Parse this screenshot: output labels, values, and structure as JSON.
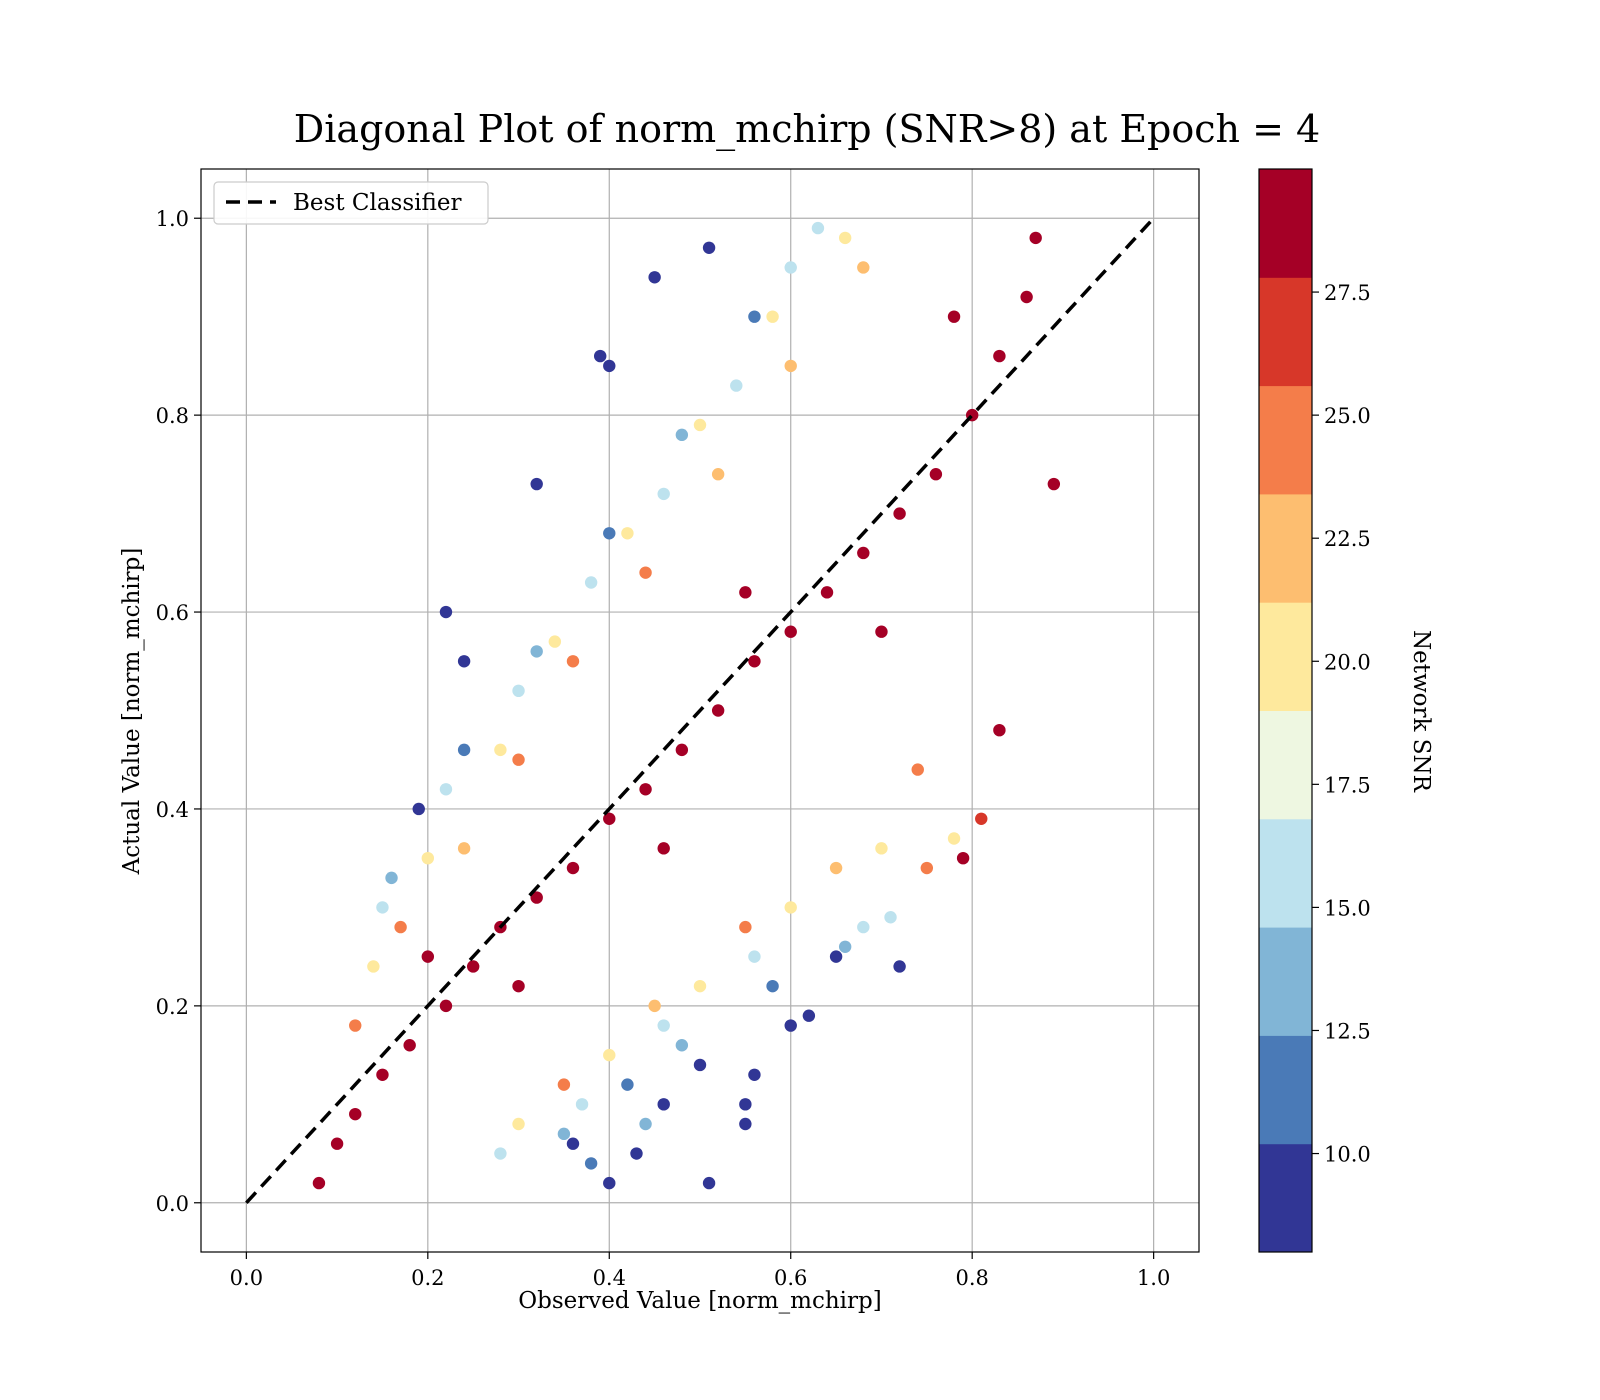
{
  "chart_data": {
    "type": "scatter",
    "title": "Diagonal Plot of norm_mchirp (SNR>8) at Epoch = 4",
    "xlabel": "Observed Value [norm_mchirp]",
    "ylabel": "Actual Value [norm_mchirp]",
    "xlim": [
      -0.05,
      1.05
    ],
    "ylim": [
      -0.05,
      1.05
    ],
    "xticks": [
      "0.0",
      "0.2",
      "0.4",
      "0.6",
      "0.8",
      "1.0"
    ],
    "yticks": [
      "0.0",
      "0.2",
      "0.4",
      "0.6",
      "0.8",
      "1.0"
    ],
    "grid": true,
    "legend": {
      "placement": "upper-left",
      "entries": [
        {
          "label": "Best Classifier",
          "style": "dashed",
          "color": "#000000"
        }
      ]
    },
    "reference_line": {
      "name": "Best Classifier",
      "x": [
        0.0,
        1.0
      ],
      "y": [
        0.0,
        1.0
      ]
    },
    "colorbar": {
      "label": "Network SNR",
      "range": [
        8,
        30
      ],
      "ticks": [
        "10.0",
        "12.5",
        "15.0",
        "17.5",
        "20.0",
        "22.5",
        "25.0",
        "27.5"
      ],
      "tick_values": [
        10.0,
        12.5,
        15.0,
        17.5,
        20.0,
        22.5,
        25.0,
        27.5
      ],
      "levels": [
        {
          "from": 8.0,
          "to": 10.2,
          "color": "#313695"
        },
        {
          "from": 10.2,
          "to": 12.4,
          "color": "#4a7ab7"
        },
        {
          "from": 12.4,
          "to": 14.6,
          "color": "#81b5d6"
        },
        {
          "from": 14.6,
          "to": 16.8,
          "color": "#bde2ee"
        },
        {
          "from": 16.8,
          "to": 19.0,
          "color": "#eef7e1"
        },
        {
          "from": 19.0,
          "to": 21.2,
          "color": "#fee99d"
        },
        {
          "from": 21.2,
          "to": 23.4,
          "color": "#fdbe70"
        },
        {
          "from": 23.4,
          "to": 25.6,
          "color": "#f47d4a"
        },
        {
          "from": 25.6,
          "to": 27.8,
          "color": "#d73729"
        },
        {
          "from": 27.8,
          "to": 30.0,
          "color": "#a50026"
        }
      ]
    },
    "points": [
      {
        "x": 0.08,
        "y": 0.02,
        "snr": 29
      },
      {
        "x": 0.1,
        "y": 0.06,
        "snr": 29
      },
      {
        "x": 0.12,
        "y": 0.09,
        "snr": 29
      },
      {
        "x": 0.15,
        "y": 0.13,
        "snr": 29
      },
      {
        "x": 0.18,
        "y": 0.16,
        "snr": 29
      },
      {
        "x": 0.22,
        "y": 0.2,
        "snr": 29
      },
      {
        "x": 0.25,
        "y": 0.24,
        "snr": 29
      },
      {
        "x": 0.28,
        "y": 0.28,
        "snr": 29
      },
      {
        "x": 0.32,
        "y": 0.31,
        "snr": 29
      },
      {
        "x": 0.36,
        "y": 0.34,
        "snr": 29
      },
      {
        "x": 0.4,
        "y": 0.39,
        "snr": 29
      },
      {
        "x": 0.44,
        "y": 0.42,
        "snr": 29
      },
      {
        "x": 0.48,
        "y": 0.46,
        "snr": 29
      },
      {
        "x": 0.52,
        "y": 0.5,
        "snr": 29
      },
      {
        "x": 0.56,
        "y": 0.55,
        "snr": 29
      },
      {
        "x": 0.6,
        "y": 0.58,
        "snr": 29
      },
      {
        "x": 0.64,
        "y": 0.62,
        "snr": 29
      },
      {
        "x": 0.68,
        "y": 0.66,
        "snr": 29
      },
      {
        "x": 0.72,
        "y": 0.7,
        "snr": 29
      },
      {
        "x": 0.76,
        "y": 0.74,
        "snr": 29
      },
      {
        "x": 0.8,
        "y": 0.8,
        "snr": 29
      },
      {
        "x": 0.83,
        "y": 0.86,
        "snr": 29
      },
      {
        "x": 0.86,
        "y": 0.92,
        "snr": 29
      },
      {
        "x": 0.87,
        "y": 0.98,
        "snr": 29
      },
      {
        "x": 0.2,
        "y": 0.25,
        "snr": 28
      },
      {
        "x": 0.3,
        "y": 0.22,
        "snr": 28
      },
      {
        "x": 0.46,
        "y": 0.36,
        "snr": 28
      },
      {
        "x": 0.55,
        "y": 0.62,
        "snr": 28
      },
      {
        "x": 0.7,
        "y": 0.58,
        "snr": 28
      },
      {
        "x": 0.78,
        "y": 0.9,
        "snr": 28
      },
      {
        "x": 0.89,
        "y": 0.73,
        "snr": 29
      },
      {
        "x": 0.83,
        "y": 0.48,
        "snr": 29
      },
      {
        "x": 0.81,
        "y": 0.39,
        "snr": 26
      },
      {
        "x": 0.79,
        "y": 0.35,
        "snr": 29
      },
      {
        "x": 0.75,
        "y": 0.34,
        "snr": 25
      },
      {
        "x": 0.12,
        "y": 0.18,
        "snr": 25
      },
      {
        "x": 0.17,
        "y": 0.28,
        "snr": 24
      },
      {
        "x": 0.24,
        "y": 0.36,
        "snr": 23
      },
      {
        "x": 0.3,
        "y": 0.45,
        "snr": 24
      },
      {
        "x": 0.36,
        "y": 0.55,
        "snr": 25
      },
      {
        "x": 0.44,
        "y": 0.64,
        "snr": 24
      },
      {
        "x": 0.52,
        "y": 0.74,
        "snr": 23
      },
      {
        "x": 0.6,
        "y": 0.85,
        "snr": 23
      },
      {
        "x": 0.68,
        "y": 0.95,
        "snr": 22
      },
      {
        "x": 0.35,
        "y": 0.12,
        "snr": 24
      },
      {
        "x": 0.45,
        "y": 0.2,
        "snr": 23
      },
      {
        "x": 0.55,
        "y": 0.28,
        "snr": 24
      },
      {
        "x": 0.65,
        "y": 0.34,
        "snr": 23
      },
      {
        "x": 0.74,
        "y": 0.44,
        "snr": 24
      },
      {
        "x": 0.14,
        "y": 0.24,
        "snr": 20
      },
      {
        "x": 0.2,
        "y": 0.35,
        "snr": 19
      },
      {
        "x": 0.28,
        "y": 0.46,
        "snr": 20
      },
      {
        "x": 0.34,
        "y": 0.57,
        "snr": 19
      },
      {
        "x": 0.42,
        "y": 0.68,
        "snr": 20
      },
      {
        "x": 0.5,
        "y": 0.79,
        "snr": 19
      },
      {
        "x": 0.58,
        "y": 0.9,
        "snr": 20
      },
      {
        "x": 0.66,
        "y": 0.98,
        "snr": 19
      },
      {
        "x": 0.3,
        "y": 0.08,
        "snr": 20
      },
      {
        "x": 0.4,
        "y": 0.15,
        "snr": 19
      },
      {
        "x": 0.5,
        "y": 0.22,
        "snr": 20
      },
      {
        "x": 0.6,
        "y": 0.3,
        "snr": 19
      },
      {
        "x": 0.7,
        "y": 0.36,
        "snr": 20
      },
      {
        "x": 0.78,
        "y": 0.37,
        "snr": 20
      },
      {
        "x": 0.15,
        "y": 0.3,
        "snr": 16
      },
      {
        "x": 0.22,
        "y": 0.42,
        "snr": 15
      },
      {
        "x": 0.3,
        "y": 0.52,
        "snr": 16
      },
      {
        "x": 0.38,
        "y": 0.63,
        "snr": 15
      },
      {
        "x": 0.46,
        "y": 0.72,
        "snr": 16
      },
      {
        "x": 0.54,
        "y": 0.83,
        "snr": 15
      },
      {
        "x": 0.6,
        "y": 0.95,
        "snr": 16
      },
      {
        "x": 0.63,
        "y": 0.99,
        "snr": 16
      },
      {
        "x": 0.28,
        "y": 0.05,
        "snr": 16
      },
      {
        "x": 0.37,
        "y": 0.1,
        "snr": 15
      },
      {
        "x": 0.46,
        "y": 0.18,
        "snr": 16
      },
      {
        "x": 0.56,
        "y": 0.25,
        "snr": 15
      },
      {
        "x": 0.68,
        "y": 0.28,
        "snr": 16
      },
      {
        "x": 0.71,
        "y": 0.29,
        "snr": 15
      },
      {
        "x": 0.16,
        "y": 0.33,
        "snr": 13
      },
      {
        "x": 0.24,
        "y": 0.46,
        "snr": 12
      },
      {
        "x": 0.32,
        "y": 0.56,
        "snr": 13
      },
      {
        "x": 0.4,
        "y": 0.68,
        "snr": 12
      },
      {
        "x": 0.48,
        "y": 0.78,
        "snr": 13
      },
      {
        "x": 0.56,
        "y": 0.9,
        "snr": 12
      },
      {
        "x": 0.35,
        "y": 0.07,
        "snr": 13
      },
      {
        "x": 0.42,
        "y": 0.12,
        "snr": 12
      },
      {
        "x": 0.48,
        "y": 0.16,
        "snr": 13
      },
      {
        "x": 0.38,
        "y": 0.04,
        "snr": 12
      },
      {
        "x": 0.44,
        "y": 0.08,
        "snr": 13
      },
      {
        "x": 0.58,
        "y": 0.22,
        "snr": 12
      },
      {
        "x": 0.66,
        "y": 0.26,
        "snr": 13
      },
      {
        "x": 0.19,
        "y": 0.4,
        "snr": 9
      },
      {
        "x": 0.22,
        "y": 0.6,
        "snr": 9
      },
      {
        "x": 0.24,
        "y": 0.55,
        "snr": 9
      },
      {
        "x": 0.32,
        "y": 0.73,
        "snr": 9
      },
      {
        "x": 0.39,
        "y": 0.86,
        "snr": 9
      },
      {
        "x": 0.4,
        "y": 0.85,
        "snr": 9
      },
      {
        "x": 0.45,
        "y": 0.94,
        "snr": 9
      },
      {
        "x": 0.51,
        "y": 0.97,
        "snr": 9
      },
      {
        "x": 0.43,
        "y": 0.05,
        "snr": 9
      },
      {
        "x": 0.51,
        "y": 0.02,
        "snr": 9
      },
      {
        "x": 0.55,
        "y": 0.1,
        "snr": 9
      },
      {
        "x": 0.55,
        "y": 0.08,
        "snr": 9
      },
      {
        "x": 0.56,
        "y": 0.13,
        "snr": 9
      },
      {
        "x": 0.6,
        "y": 0.18,
        "snr": 9
      },
      {
        "x": 0.62,
        "y": 0.19,
        "snr": 9
      },
      {
        "x": 0.65,
        "y": 0.25,
        "snr": 9
      },
      {
        "x": 0.72,
        "y": 0.24,
        "snr": 9
      },
      {
        "x": 0.4,
        "y": 0.02,
        "snr": 9
      },
      {
        "x": 0.36,
        "y": 0.06,
        "snr": 10
      },
      {
        "x": 0.46,
        "y": 0.1,
        "snr": 10
      },
      {
        "x": 0.5,
        "y": 0.14,
        "snr": 10
      }
    ]
  }
}
